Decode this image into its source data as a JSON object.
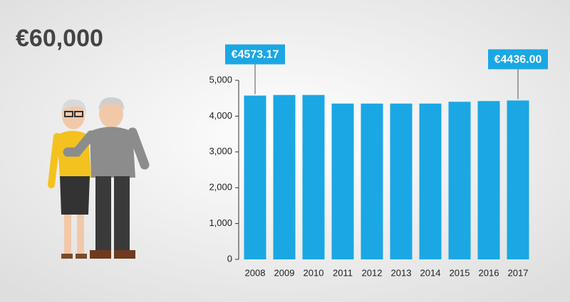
{
  "chart_data": {
    "type": "bar",
    "title": "€60,000",
    "categories": [
      "2008",
      "2009",
      "2010",
      "2011",
      "2012",
      "2013",
      "2014",
      "2015",
      "2016",
      "2017"
    ],
    "values": [
      4573.17,
      4590,
      4590,
      4350,
      4350,
      4350,
      4350,
      4400,
      4420,
      4436.0
    ],
    "value_labels": [
      "€4573.17",
      null,
      null,
      null,
      null,
      null,
      null,
      null,
      null,
      "€4436.00"
    ],
    "color": "#1aa7e4",
    "ylim": [
      0,
      5000
    ],
    "yticks": [
      0,
      {
        "value": 1000,
        "label": "1,000"
      },
      {
        "value": 2000,
        "label": "2,000"
      },
      {
        "value": 3000,
        "label": "3,000"
      },
      {
        "value": 4000,
        "label": "4,000"
      },
      {
        "value": 5000,
        "label": "5,000"
      }
    ],
    "grid": false
  }
}
